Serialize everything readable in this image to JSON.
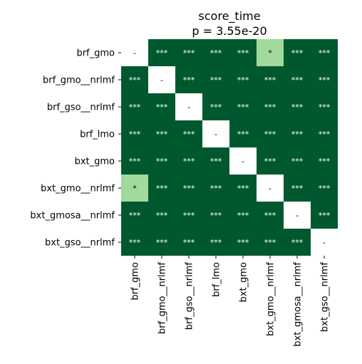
{
  "chart_data": {
    "type": "heatmap",
    "title": "score_time",
    "subtitle": "p = 3.55e-20",
    "row_labels": [
      "brf_gmo",
      "brf_gmo__nrlmf",
      "brf_gso__nrlmf",
      "brf_lmo",
      "bxt_gmo",
      "bxt_gmo__nrlmf",
      "bxt_gmosa__nrlmf",
      "bxt_gso__nrlmf"
    ],
    "col_labels": [
      "brf_gmo",
      "brf_gmo__nrlmf",
      "brf_gso__nrlmf",
      "brf_lmo",
      "bxt_gmo",
      "bxt_gmo__nrlmf",
      "bxt_gmosa__nrlmf",
      "bxt_gso__nrlmf"
    ],
    "cells": [
      [
        "-",
        "***",
        "***",
        "***",
        "***",
        "*",
        "***",
        "***"
      ],
      [
        "***",
        "-",
        "***",
        "***",
        "***",
        "***",
        "***",
        "***"
      ],
      [
        "***",
        "***",
        "-",
        "***",
        "***",
        "***",
        "***",
        "***"
      ],
      [
        "***",
        "***",
        "***",
        "-",
        "***",
        "***",
        "***",
        "***"
      ],
      [
        "***",
        "***",
        "***",
        "***",
        "-",
        "***",
        "***",
        "***"
      ],
      [
        "*",
        "***",
        "***",
        "***",
        "***",
        "-",
        "***",
        "***"
      ],
      [
        "***",
        "***",
        "***",
        "***",
        "***",
        "***",
        "-",
        "***"
      ],
      [
        "***",
        "***",
        "***",
        "***",
        "***",
        "***",
        "***",
        "-"
      ]
    ],
    "colors": {
      "***": "#00592e",
      "*": "#a1da9b",
      "-": "#ffffff"
    },
    "text_colors": {
      "***": "#ffffff",
      "*": "#000000",
      "-": "#000000"
    }
  }
}
